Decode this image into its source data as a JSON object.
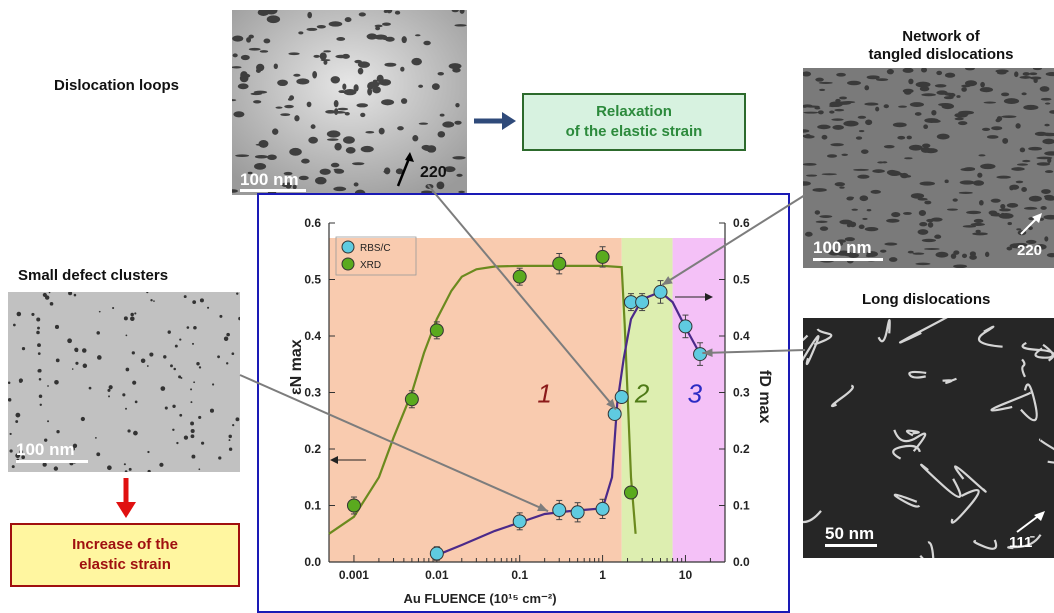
{
  "labels": {
    "dislocation_loops": "Dislocation loops",
    "network_line1": "Network of",
    "network_line2": "tangled dislocations",
    "small_defects": "Small defect clusters",
    "long_dislocations": "Long dislocations"
  },
  "boxes": {
    "relaxation_line1": "Relaxation",
    "relaxation_line2": "of the elastic strain",
    "increase_line1": "Increase of the",
    "increase_line2": "elastic strain"
  },
  "scalebars": {
    "loops": "100 nm",
    "network": "100 nm",
    "clusters": "100 nm",
    "long": "50 nm"
  },
  "miller": {
    "loops": "220",
    "network": "220",
    "long": "111̄"
  },
  "colors": {
    "region1": "#f9cbaf",
    "region2": "#ddeeb0",
    "region3": "#f4c1f7",
    "xrd": "#5aaa1e",
    "rbs": "#5fcbe0",
    "rbs_line": "#4b2a8a",
    "xrd_line": "#6b8a1e",
    "frame": "#1a1ab5",
    "relax_box_bg": "#d7f2e0",
    "relax_box_border": "#2c6a2c",
    "increase_box_bg": "#fff6a0",
    "increase_box_border": "#a01010",
    "red_arrow": "#e01010",
    "blue_arrow": "#2f4a7a"
  },
  "chart_data": {
    "type": "scatter",
    "xlabel": "Au FLUENCE (10¹⁵ cm⁻²)",
    "ylabel_left": "εN max",
    "ylabel_right": "fD max",
    "xscale": "log",
    "xlim": [
      0.0005,
      30
    ],
    "ylim": [
      0,
      0.6
    ],
    "x_ticks": [
      "0.001",
      "0.01",
      "0.1",
      "1",
      "10"
    ],
    "x_tick_values": [
      0.001,
      0.01,
      0.1,
      1,
      10
    ],
    "y_ticks": [
      "0.0",
      "0.1",
      "0.2",
      "0.3",
      "0.4",
      "0.5",
      "0.6"
    ],
    "y_tick_values": [
      0,
      0.1,
      0.2,
      0.3,
      0.4,
      0.5,
      0.6
    ],
    "legend_position": "top-left",
    "regions": [
      {
        "label": "1",
        "from": 0.0005,
        "to": 1.7,
        "color": "#f9cbaf",
        "label_color": "#8b1a1a"
      },
      {
        "label": "2",
        "from": 1.7,
        "to": 7,
        "color": "#ddeeb0",
        "label_color": "#4e7a16"
      },
      {
        "label": "3",
        "from": 7,
        "to": 30,
        "color": "#f4c1f7",
        "label_color": "#2b2bc4"
      }
    ],
    "series": [
      {
        "name": "RBS/C",
        "axis": "right",
        "points": [
          {
            "x": 0.01,
            "y": 0.015,
            "err": 0.012
          },
          {
            "x": 0.1,
            "y": 0.072,
            "err": 0.015
          },
          {
            "x": 0.3,
            "y": 0.092,
            "err": 0.017
          },
          {
            "x": 0.5,
            "y": 0.088,
            "err": 0.017
          },
          {
            "x": 1.0,
            "y": 0.094,
            "err": 0.017
          },
          {
            "x": 1.4,
            "y": 0.262,
            "err": 0.01
          },
          {
            "x": 1.7,
            "y": 0.292,
            "err": 0.01
          },
          {
            "x": 2.2,
            "y": 0.46,
            "err": 0.015
          },
          {
            "x": 3.0,
            "y": 0.46,
            "err": 0.015
          },
          {
            "x": 5.0,
            "y": 0.478,
            "err": 0.02
          },
          {
            "x": 10.0,
            "y": 0.417,
            "err": 0.02
          },
          {
            "x": 15.0,
            "y": 0.368,
            "err": 0.02
          }
        ]
      },
      {
        "name": "XRD",
        "axis": "left",
        "points": [
          {
            "x": 0.001,
            "y": 0.1,
            "err": 0.015
          },
          {
            "x": 0.005,
            "y": 0.288,
            "err": 0.015
          },
          {
            "x": 0.01,
            "y": 0.41,
            "err": 0.015
          },
          {
            "x": 0.1,
            "y": 0.505,
            "err": 0.015
          },
          {
            "x": 0.3,
            "y": 0.528,
            "err": 0.018
          },
          {
            "x": 1.0,
            "y": 0.54,
            "err": 0.018
          },
          {
            "x": 2.2,
            "y": 0.123,
            "err": 0.008
          }
        ]
      }
    ],
    "fit_curves": [
      {
        "series": "XRD",
        "points": [
          [
            0.0005,
            0.05
          ],
          [
            0.001,
            0.08
          ],
          [
            0.002,
            0.15
          ],
          [
            0.003,
            0.22
          ],
          [
            0.005,
            0.3
          ],
          [
            0.007,
            0.37
          ],
          [
            0.01,
            0.43
          ],
          [
            0.015,
            0.48
          ],
          [
            0.02,
            0.505
          ],
          [
            0.03,
            0.518
          ],
          [
            0.05,
            0.523
          ],
          [
            0.1,
            0.524
          ],
          [
            1,
            0.524
          ],
          [
            1.7,
            0.522
          ],
          [
            1.85,
            0.42
          ],
          [
            2.0,
            0.3
          ],
          [
            2.2,
            0.15
          ],
          [
            2.5,
            0.05
          ]
        ]
      },
      {
        "series": "RBS/C",
        "points": [
          [
            0.01,
            0.012
          ],
          [
            0.02,
            0.03
          ],
          [
            0.05,
            0.055
          ],
          [
            0.1,
            0.07
          ],
          [
            0.2,
            0.085
          ],
          [
            0.4,
            0.09
          ],
          [
            1,
            0.095
          ],
          [
            1.3,
            0.15
          ],
          [
            1.5,
            0.28
          ],
          [
            1.8,
            0.36
          ],
          [
            2.2,
            0.43
          ],
          [
            3,
            0.465
          ],
          [
            5,
            0.478
          ],
          [
            7,
            0.46
          ],
          [
            10,
            0.415
          ],
          [
            15,
            0.368
          ]
        ]
      }
    ],
    "region_labels": [
      "1",
      "2",
      "3"
    ]
  }
}
